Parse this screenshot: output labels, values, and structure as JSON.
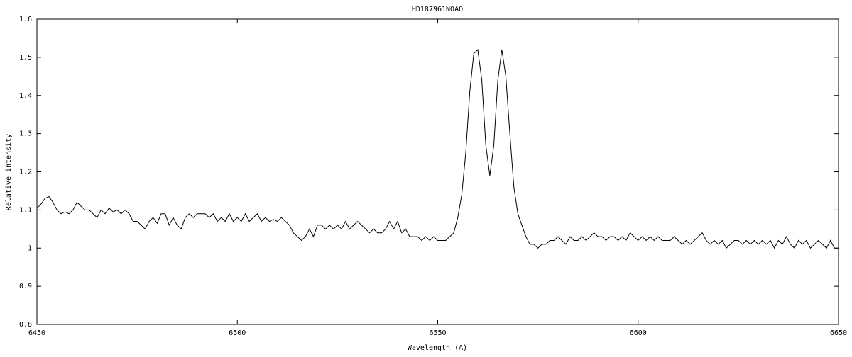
{
  "chart_data": {
    "type": "line",
    "title": "HD187961NOAO",
    "x_label": "Wavelength (A)",
    "y_label": "Relative intensity",
    "xlim": [
      6450,
      6650
    ],
    "xticks": [
      6450,
      6500,
      6550,
      6600,
      6650
    ],
    "ylim": [
      0.8,
      1.6
    ],
    "yticks": [
      0.8,
      0.9,
      1,
      1.1,
      1.2,
      1.3,
      1.4,
      1.5,
      1.6
    ],
    "x": [
      6450,
      6451,
      6452,
      6453,
      6454,
      6455,
      6456,
      6457,
      6458,
      6459,
      6460,
      6461,
      6462,
      6463,
      6464,
      6465,
      6466,
      6467,
      6468,
      6469,
      6470,
      6471,
      6472,
      6473,
      6474,
      6475,
      6476,
      6477,
      6478,
      6479,
      6480,
      6481,
      6482,
      6483,
      6484,
      6485,
      6486,
      6487,
      6488,
      6489,
      6490,
      6491,
      6492,
      6493,
      6494,
      6495,
      6496,
      6497,
      6498,
      6499,
      6500,
      6501,
      6502,
      6503,
      6504,
      6505,
      6506,
      6507,
      6508,
      6509,
      6510,
      6511,
      6512,
      6513,
      6514,
      6515,
      6516,
      6517,
      6518,
      6519,
      6520,
      6521,
      6522,
      6523,
      6524,
      6525,
      6526,
      6527,
      6528,
      6529,
      6530,
      6531,
      6532,
      6533,
      6534,
      6535,
      6536,
      6537,
      6538,
      6539,
      6540,
      6541,
      6542,
      6543,
      6544,
      6545,
      6546,
      6547,
      6548,
      6549,
      6550,
      6551,
      6552,
      6553,
      6554,
      6555,
      6556,
      6557,
      6558,
      6559,
      6560,
      6561,
      6562,
      6563,
      6564,
      6565,
      6566,
      6567,
      6568,
      6569,
      6570,
      6571,
      6572,
      6573,
      6574,
      6575,
      6576,
      6577,
      6578,
      6579,
      6580,
      6581,
      6582,
      6583,
      6584,
      6585,
      6586,
      6587,
      6588,
      6589,
      6590,
      6591,
      6592,
      6593,
      6594,
      6595,
      6596,
      6597,
      6598,
      6599,
      6600,
      6601,
      6602,
      6603,
      6604,
      6605,
      6606,
      6607,
      6608,
      6609,
      6610,
      6611,
      6612,
      6613,
      6614,
      6615,
      6616,
      6617,
      6618,
      6619,
      6620,
      6621,
      6622,
      6623,
      6624,
      6625,
      6626,
      6627,
      6628,
      6629,
      6630,
      6631,
      6632,
      6633,
      6634,
      6635,
      6636,
      6637,
      6638,
      6639,
      6640,
      6641,
      6642,
      6643,
      6644,
      6645,
      6646,
      6647,
      6648,
      6649,
      6650
    ],
    "series": [
      {
        "color": "#000000",
        "values": [
          1.105,
          1.115,
          1.13,
          1.135,
          1.12,
          1.1,
          1.09,
          1.095,
          1.09,
          1.1,
          1.12,
          1.11,
          1.1,
          1.1,
          1.09,
          1.08,
          1.1,
          1.09,
          1.105,
          1.095,
          1.1,
          1.09,
          1.1,
          1.09,
          1.07,
          1.07,
          1.06,
          1.05,
          1.07,
          1.08,
          1.065,
          1.09,
          1.09,
          1.06,
          1.08,
          1.06,
          1.05,
          1.08,
          1.09,
          1.08,
          1.09,
          1.09,
          1.09,
          1.08,
          1.09,
          1.07,
          1.08,
          1.07,
          1.09,
          1.07,
          1.08,
          1.07,
          1.09,
          1.07,
          1.08,
          1.09,
          1.07,
          1.08,
          1.07,
          1.075,
          1.07,
          1.08,
          1.07,
          1.06,
          1.04,
          1.03,
          1.02,
          1.03,
          1.05,
          1.03,
          1.06,
          1.06,
          1.05,
          1.06,
          1.05,
          1.06,
          1.05,
          1.07,
          1.05,
          1.06,
          1.07,
          1.06,
          1.05,
          1.04,
          1.05,
          1.04,
          1.04,
          1.05,
          1.07,
          1.05,
          1.07,
          1.04,
          1.05,
          1.03,
          1.03,
          1.03,
          1.02,
          1.03,
          1.02,
          1.03,
          1.02,
          1.02,
          1.02,
          1.03,
          1.04,
          1.08,
          1.14,
          1.25,
          1.41,
          1.51,
          1.52,
          1.44,
          1.27,
          1.19,
          1.27,
          1.44,
          1.52,
          1.45,
          1.3,
          1.16,
          1.09,
          1.06,
          1.03,
          1.01,
          1.01,
          1.0,
          1.01,
          1.01,
          1.02,
          1.02,
          1.03,
          1.02,
          1.01,
          1.03,
          1.02,
          1.02,
          1.03,
          1.02,
          1.03,
          1.04,
          1.03,
          1.03,
          1.02,
          1.03,
          1.03,
          1.02,
          1.03,
          1.02,
          1.04,
          1.03,
          1.02,
          1.03,
          1.02,
          1.03,
          1.02,
          1.03,
          1.02,
          1.02,
          1.02,
          1.03,
          1.02,
          1.01,
          1.02,
          1.01,
          1.02,
          1.03,
          1.04,
          1.02,
          1.01,
          1.02,
          1.01,
          1.02,
          1.0,
          1.01,
          1.02,
          1.02,
          1.01,
          1.02,
          1.01,
          1.02,
          1.01,
          1.02,
          1.01,
          1.02,
          1.0,
          1.02,
          1.01,
          1.03,
          1.01,
          1.0,
          1.02,
          1.01,
          1.02,
          1.0,
          1.01,
          1.02,
          1.01,
          1.0,
          1.02,
          1.0,
          1.0
        ]
      }
    ]
  }
}
